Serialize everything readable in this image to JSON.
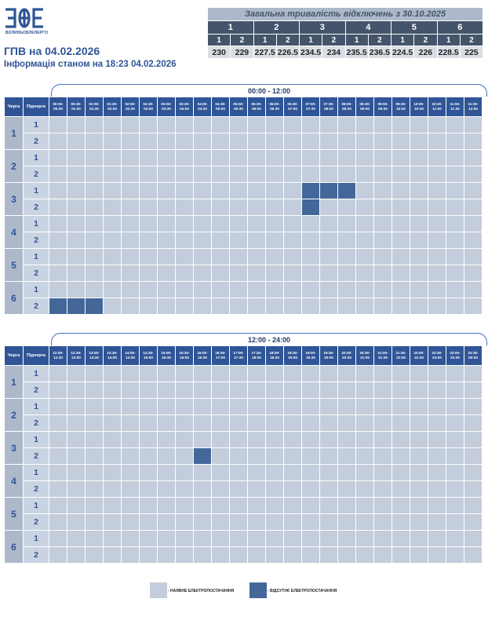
{
  "header": {
    "logo_text": "ВОЛИНЬОБЛЕНЕРГО",
    "title": "ГПВ на 04.02.2026",
    "subtitle": "Інформація станом на 18:23 04.02.2026"
  },
  "summary": {
    "heading": "Загальна тривалість відключень з 30.10.2025",
    "queues": [
      {
        "label": "1",
        "subs": [
          {
            "label": "1",
            "value": "230"
          },
          {
            "label": "2",
            "value": "229"
          }
        ]
      },
      {
        "label": "2",
        "subs": [
          {
            "label": "1",
            "value": "227.5"
          },
          {
            "label": "2",
            "value": "226.5"
          }
        ]
      },
      {
        "label": "3",
        "subs": [
          {
            "label": "1",
            "value": "234.5"
          },
          {
            "label": "2",
            "value": "234"
          }
        ]
      },
      {
        "label": "4",
        "subs": [
          {
            "label": "1",
            "value": "235.5"
          },
          {
            "label": "2",
            "value": "236.5"
          }
        ]
      },
      {
        "label": "5",
        "subs": [
          {
            "label": "1",
            "value": "224.5"
          },
          {
            "label": "2",
            "value": "226"
          }
        ]
      },
      {
        "label": "6",
        "subs": [
          {
            "label": "1",
            "value": "228.5"
          },
          {
            "label": "2",
            "value": "225"
          }
        ]
      }
    ]
  },
  "grid_labels": {
    "queue": "Черга",
    "subqueue": "Підчерга"
  },
  "queues": [
    "1",
    "2",
    "3",
    "4",
    "5",
    "6"
  ],
  "subqueues": [
    "1",
    "2"
  ],
  "blocks": [
    {
      "period": "00:00 - 12:00",
      "slots": [
        "00:00-00:30",
        "00:30-01:00",
        "01:00-01:30",
        "01:30-02:00",
        "02:00-02:30",
        "02:30-03:00",
        "03:00-03:30",
        "03:30-04:00",
        "04:00-04:30",
        "04:30-05:00",
        "05:00-05:30",
        "05:30-06:00",
        "06:00-06:30",
        "06:30-07:00",
        "07:00-07:30",
        "07:30-08:00",
        "08:00-08:30",
        "08:30-09:00",
        "09:00-09:30",
        "09:30-10:00",
        "10:00-10:30",
        "10:30-11:00",
        "11:00-11:30",
        "11:30-12:00"
      ],
      "outages": [
        {
          "queue": "3",
          "sub": "1",
          "slots": [
            14,
            15,
            16
          ]
        },
        {
          "queue": "3",
          "sub": "2",
          "slots": [
            14
          ]
        },
        {
          "queue": "6",
          "sub": "2",
          "slots": [
            0,
            1,
            2
          ]
        }
      ]
    },
    {
      "period": "12:00 - 24:00",
      "slots": [
        "12:00-12:30",
        "12:30-13:00",
        "13:00-13:30",
        "13:30-14:00",
        "14:00-14:30",
        "14:30-15:00",
        "15:00-15:30",
        "15:30-16:00",
        "16:00-16:30",
        "16:30-17:00",
        "17:00-17:30",
        "17:30-18:00",
        "18:00-18:30",
        "18:30-19:00",
        "19:00-19:30",
        "19:30-20:00",
        "20:00-20:30",
        "20:30-21:00",
        "21:00-21:30",
        "21:30-22:00",
        "22:00-22:30",
        "22:30-23:00",
        "23:00-23:30",
        "23:30-00:00"
      ],
      "outages": [
        {
          "queue": "3",
          "sub": "2",
          "slots": [
            8
          ]
        }
      ]
    }
  ],
  "legend": {
    "available": "- НАЯВНЕ ЕЛЕКТРОПОСТАЧАННЯ",
    "absent": "- ВІДСУТНЄ ЕЛЕКТРОПОСТАЧАННЯ"
  },
  "colors": {
    "available": "#c3cddb",
    "absent": "#44679a",
    "header": "#2f5597"
  }
}
